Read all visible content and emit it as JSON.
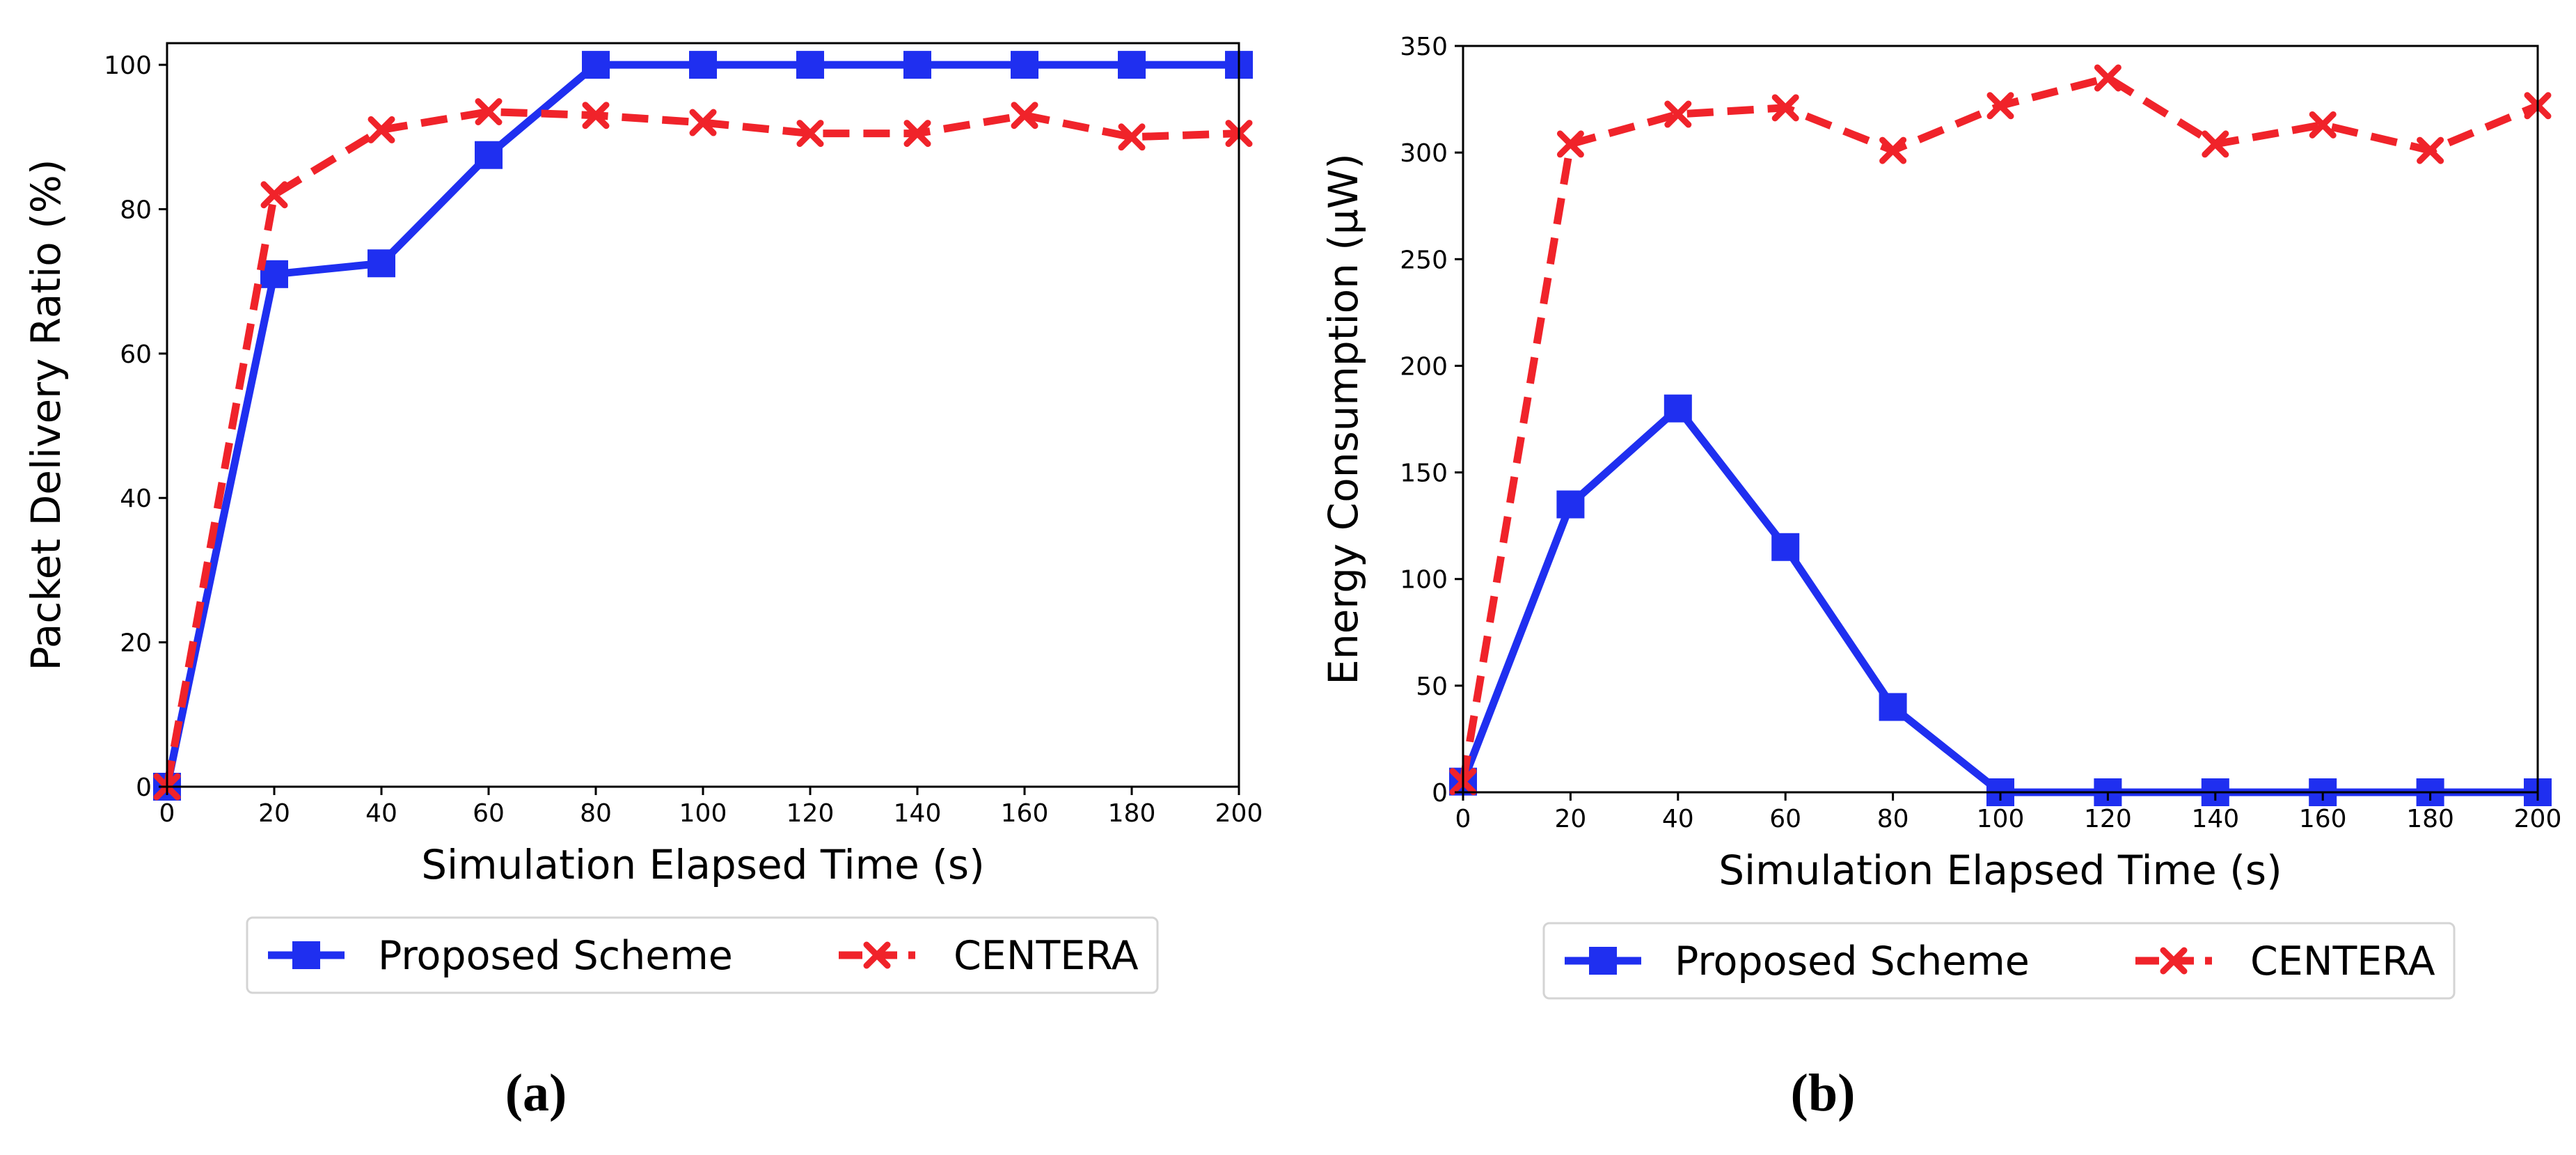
{
  "colors": {
    "proposed": "#1f2ff0",
    "centera": "#f0232a",
    "axis": "#000000"
  },
  "chart_data": [
    {
      "type": "line",
      "panel_label": "(a)",
      "xlabel": "Simulation Elapsed Time (s)",
      "ylabel": "Packet Delivery Ratio (%)",
      "xlim": [
        0,
        200
      ],
      "ylim": [
        0,
        103
      ],
      "xticks": [
        0,
        20,
        40,
        60,
        80,
        100,
        120,
        140,
        160,
        180,
        200
      ],
      "yticks": [
        0,
        20,
        40,
        60,
        80,
        100
      ],
      "x": [
        0,
        20,
        40,
        60,
        80,
        100,
        120,
        140,
        160,
        180,
        200
      ],
      "series": [
        {
          "name": "Proposed Scheme",
          "marker": "square",
          "linestyle": "solid",
          "values": [
            0,
            71,
            72.5,
            87.5,
            100,
            100,
            100,
            100,
            100,
            100,
            100
          ]
        },
        {
          "name": "CENTERA",
          "marker": "x",
          "linestyle": "dashed",
          "values": [
            0,
            82,
            91,
            93.5,
            93,
            92,
            90.5,
            90.5,
            93,
            90,
            90.5
          ]
        }
      ],
      "legend": [
        "Proposed Scheme",
        "CENTERA"
      ],
      "legend_position": "below",
      "grid": false
    },
    {
      "type": "line",
      "panel_label": "(b)",
      "xlabel": "Simulation Elapsed Time (s)",
      "ylabel": "Energy Consumption (µW)",
      "xlim": [
        0,
        200
      ],
      "ylim": [
        0,
        350
      ],
      "xticks": [
        0,
        20,
        40,
        60,
        80,
        100,
        120,
        140,
        160,
        180,
        200
      ],
      "yticks": [
        0,
        50,
        100,
        150,
        200,
        250,
        300,
        350
      ],
      "x": [
        0,
        20,
        40,
        60,
        80,
        100,
        120,
        140,
        160,
        180,
        200
      ],
      "series": [
        {
          "name": "Proposed Scheme",
          "marker": "square",
          "linestyle": "solid",
          "values": [
            5,
            135,
            180,
            115,
            40,
            0,
            0,
            0,
            0,
            0,
            0
          ]
        },
        {
          "name": "CENTERA",
          "marker": "x",
          "linestyle": "dashed",
          "values": [
            5,
            304,
            318,
            321,
            301,
            322,
            335,
            304,
            313,
            301,
            322
          ]
        }
      ],
      "legend": [
        "Proposed Scheme",
        "CENTERA"
      ],
      "legend_position": "below",
      "grid": false
    }
  ]
}
